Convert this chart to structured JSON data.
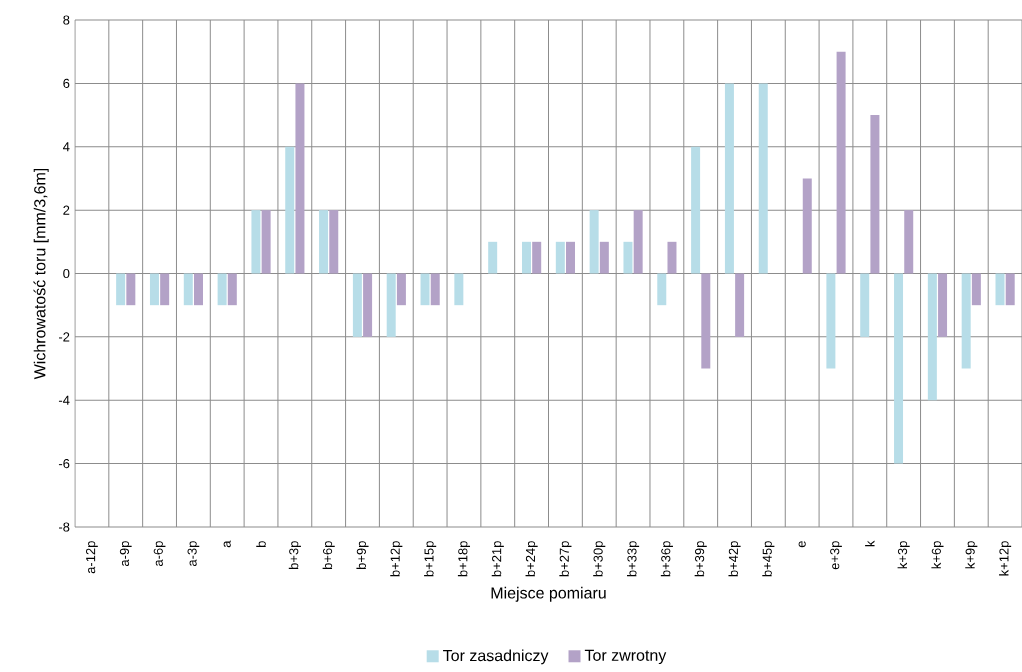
{
  "chart_data": {
    "type": "bar",
    "xlabel": "Miejsce pomiaru",
    "ylabel": "Wichrowatość toru [mm/3,6m]",
    "categories": [
      "a-12p",
      "a-9p",
      "a-6p",
      "a-3p",
      "a",
      "b",
      "b+3p",
      "b+6p",
      "b+9p",
      "b+12p",
      "b+15p",
      "b+18p",
      "b+21p",
      "b+24p",
      "b+27p",
      "b+30p",
      "b+33p",
      "b+36p",
      "b+39p",
      "b+42p",
      "b+45p",
      "e",
      "e+3p",
      "k",
      "k+3p",
      "k+6p",
      "k+9p",
      "k+12p"
    ],
    "series": [
      {
        "name": "Tor zasadniczy",
        "color": "#b7dde8",
        "values": [
          0,
          -1,
          -1,
          -1,
          -1,
          2,
          4,
          2,
          -2,
          -2,
          -1,
          -1,
          1,
          1,
          1,
          2,
          1,
          -1,
          4,
          6,
          6,
          0,
          -3,
          -2,
          -6,
          -4,
          -3,
          -1
        ]
      },
      {
        "name": "Tor zwrotny",
        "color": "#b3a2c7",
        "values": [
          0,
          -1,
          -1,
          -1,
          -1,
          2,
          6,
          2,
          -2,
          -1,
          -1,
          0,
          0,
          1,
          1,
          1,
          2,
          1,
          -3,
          -2,
          0,
          3,
          7,
          5,
          2,
          -2,
          -1,
          -1
        ]
      }
    ],
    "ylim": [
      -8,
      8
    ],
    "yticks": [
      -8,
      -6,
      -4,
      -2,
      0,
      2,
      4,
      6,
      8
    ],
    "grid": true,
    "legend": "bottom"
  }
}
